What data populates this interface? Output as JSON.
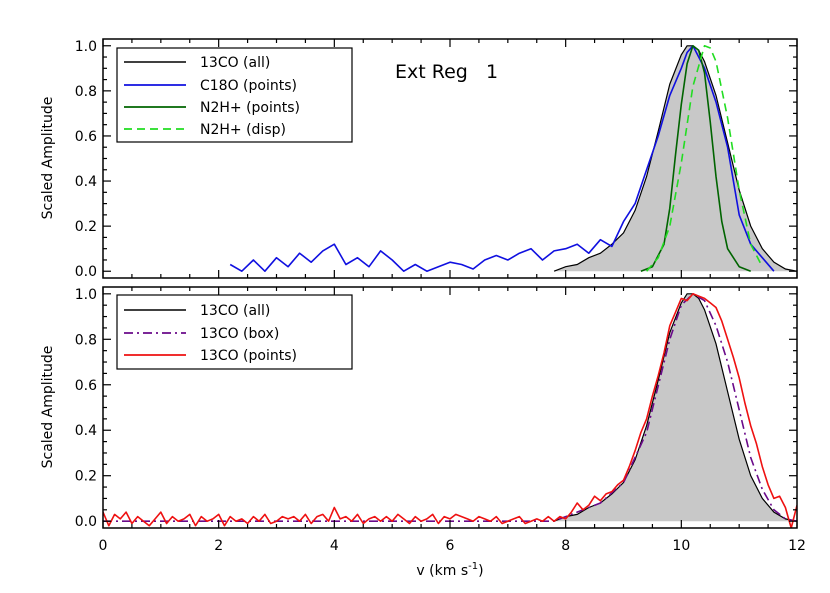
{
  "colors": {
    "13CO_all": "#000000",
    "fill": "#c8c8c8",
    "C18O_points": "#1010e0",
    "N2H_points": "#006400",
    "N2H_disp": "#22dd22",
    "13CO_box": "#6a0a8a",
    "13CO_points": "#ee1111"
  },
  "chart_data": [
    {
      "type": "line",
      "title": "Ext Reg   1",
      "xlabel": "",
      "ylabel": "Scaled Amplitude",
      "xlim": [
        0,
        12
      ],
      "ylim": [
        -0.03,
        1.03
      ],
      "yticks": [
        "0.0",
        "0.2",
        "0.4",
        "0.6",
        "0.8",
        "1.0"
      ],
      "legend_position": "top-left",
      "legend": [
        "13CO (all)",
        "C18O (points)",
        "N2H+ (points)",
        "N2H+ (disp)"
      ],
      "series": [
        {
          "name": "13CO (all)",
          "style": "filled",
          "x": [
            7.8,
            8.0,
            8.2,
            8.4,
            8.6,
            8.8,
            9.0,
            9.2,
            9.4,
            9.6,
            9.8,
            10.0,
            10.1,
            10.2,
            10.3,
            10.4,
            10.6,
            10.8,
            11.0,
            11.2,
            11.4,
            11.6,
            11.8,
            12.0
          ],
          "y": [
            0.0,
            0.02,
            0.03,
            0.06,
            0.08,
            0.12,
            0.17,
            0.27,
            0.42,
            0.62,
            0.83,
            0.96,
            1.0,
            1.0,
            0.98,
            0.93,
            0.78,
            0.57,
            0.36,
            0.2,
            0.1,
            0.04,
            0.01,
            0.0
          ]
        },
        {
          "name": "C18O (points)",
          "style": "solid",
          "x": [
            2.2,
            2.4,
            2.6,
            2.8,
            3.0,
            3.2,
            3.4,
            3.6,
            3.8,
            4.0,
            4.2,
            4.4,
            4.6,
            4.8,
            5.0,
            5.2,
            5.4,
            5.6,
            5.8,
            6.0,
            6.2,
            6.4,
            6.6,
            6.8,
            7.0,
            7.2,
            7.4,
            7.6,
            7.8,
            8.0,
            8.2,
            8.4,
            8.6,
            8.8,
            9.0,
            9.2,
            9.4,
            9.6,
            9.8,
            10.0,
            10.1,
            10.2,
            10.3,
            10.4,
            10.6,
            10.8,
            11.0,
            11.2,
            11.4,
            11.6
          ],
          "y": [
            0.03,
            0.0,
            0.05,
            0.0,
            0.06,
            0.02,
            0.08,
            0.04,
            0.09,
            0.12,
            0.03,
            0.06,
            0.02,
            0.09,
            0.05,
            0.0,
            0.03,
            0.0,
            0.02,
            0.04,
            0.03,
            0.01,
            0.05,
            0.07,
            0.05,
            0.08,
            0.1,
            0.05,
            0.09,
            0.1,
            0.12,
            0.08,
            0.14,
            0.11,
            0.22,
            0.3,
            0.45,
            0.6,
            0.78,
            0.9,
            0.97,
            1.0,
            0.95,
            0.9,
            0.75,
            0.55,
            0.25,
            0.12,
            0.06,
            0.0
          ]
        },
        {
          "name": "N2H+ (points)",
          "style": "solid",
          "x": [
            9.3,
            9.5,
            9.7,
            9.8,
            9.9,
            10.0,
            10.1,
            10.2,
            10.3,
            10.4,
            10.5,
            10.6,
            10.7,
            10.8,
            11.0,
            11.2
          ],
          "y": [
            0.0,
            0.02,
            0.12,
            0.28,
            0.52,
            0.74,
            0.92,
            1.0,
            0.98,
            0.88,
            0.66,
            0.42,
            0.22,
            0.1,
            0.02,
            0.0
          ]
        },
        {
          "name": "N2H+ (disp)",
          "style": "dashed",
          "x": [
            9.4,
            9.6,
            9.8,
            10.0,
            10.2,
            10.4,
            10.5,
            10.6,
            10.8,
            11.0,
            11.2,
            11.4
          ],
          "y": [
            0.0,
            0.06,
            0.2,
            0.48,
            0.82,
            1.0,
            0.99,
            0.93,
            0.68,
            0.36,
            0.12,
            0.02
          ]
        }
      ]
    },
    {
      "type": "line",
      "title": "",
      "xlabel": "v (km s⁻¹)",
      "ylabel": "Scaled Amplitude",
      "xlim": [
        0,
        12
      ],
      "ylim": [
        -0.03,
        1.03
      ],
      "xticks": [
        "0",
        "2",
        "4",
        "6",
        "8",
        "10",
        "12"
      ],
      "yticks": [
        "0.0",
        "0.2",
        "0.4",
        "0.6",
        "0.8",
        "1.0"
      ],
      "legend_position": "top-left",
      "legend": [
        "13CO (all)",
        "13CO (box)",
        "13CO (points)"
      ],
      "series": [
        {
          "name": "13CO (all)",
          "style": "filled",
          "x": [
            7.8,
            8.0,
            8.2,
            8.4,
            8.6,
            8.8,
            9.0,
            9.2,
            9.4,
            9.6,
            9.8,
            10.0,
            10.1,
            10.2,
            10.3,
            10.4,
            10.6,
            10.8,
            11.0,
            11.2,
            11.4,
            11.6,
            11.8,
            12.0
          ],
          "y": [
            0.0,
            0.02,
            0.03,
            0.06,
            0.08,
            0.12,
            0.17,
            0.27,
            0.42,
            0.62,
            0.83,
            0.96,
            1.0,
            1.0,
            0.98,
            0.93,
            0.78,
            0.57,
            0.36,
            0.2,
            0.1,
            0.04,
            0.01,
            0.0
          ]
        },
        {
          "name": "13CO (box)",
          "style": "dashdot",
          "x": [
            0,
            1,
            2,
            3,
            4,
            5,
            6,
            7,
            7.8,
            8.2,
            8.6,
            9.0,
            9.4,
            9.8,
            10.0,
            10.2,
            10.4,
            10.6,
            10.8,
            11.0,
            11.2,
            11.4,
            11.6,
            11.8,
            12.0
          ],
          "y": [
            0.0,
            0.0,
            0.0,
            0.0,
            0.0,
            0.0,
            0.0,
            0.0,
            0.0,
            0.04,
            0.08,
            0.17,
            0.39,
            0.8,
            0.95,
            1.0,
            0.97,
            0.86,
            0.7,
            0.49,
            0.28,
            0.14,
            0.05,
            0.01,
            0.0
          ]
        },
        {
          "name": "13CO (points)",
          "style": "solid",
          "x": [
            0.0,
            0.1,
            0.2,
            0.3,
            0.4,
            0.5,
            0.6,
            0.7,
            0.8,
            0.9,
            1.0,
            1.1,
            1.2,
            1.3,
            1.4,
            1.5,
            1.6,
            1.7,
            1.8,
            1.9,
            2.0,
            2.1,
            2.2,
            2.3,
            2.4,
            2.5,
            2.6,
            2.7,
            2.8,
            2.9,
            3.0,
            3.1,
            3.2,
            3.3,
            3.4,
            3.5,
            3.6,
            3.7,
            3.8,
            3.9,
            4.0,
            4.1,
            4.2,
            4.3,
            4.4,
            4.5,
            4.6,
            4.7,
            4.8,
            4.9,
            5.0,
            5.1,
            5.2,
            5.3,
            5.4,
            5.5,
            5.6,
            5.7,
            5.8,
            5.9,
            6.0,
            6.1,
            6.2,
            6.3,
            6.4,
            6.5,
            6.6,
            6.7,
            6.8,
            6.9,
            7.0,
            7.1,
            7.2,
            7.3,
            7.4,
            7.5,
            7.6,
            7.7,
            7.8,
            7.9,
            8.0,
            8.1,
            8.2,
            8.3,
            8.4,
            8.5,
            8.6,
            8.7,
            8.8,
            8.9,
            9.0,
            9.1,
            9.2,
            9.3,
            9.4,
            9.5,
            9.6,
            9.7,
            9.8,
            9.9,
            10.0,
            10.1,
            10.2,
            10.3,
            10.4,
            10.5,
            10.6,
            10.7,
            10.8,
            10.9,
            11.0,
            11.1,
            11.2,
            11.3,
            11.4,
            11.5,
            11.6,
            11.7,
            11.8,
            11.9,
            12.0
          ],
          "y": [
            0.04,
            -0.02,
            0.03,
            0.01,
            0.04,
            -0.01,
            0.02,
            0.0,
            -0.02,
            0.01,
            0.04,
            -0.01,
            0.02,
            0.0,
            0.01,
            0.03,
            -0.02,
            0.02,
            0.0,
            0.01,
            0.03,
            -0.02,
            0.02,
            0.0,
            0.01,
            -0.01,
            0.02,
            0.0,
            0.03,
            -0.01,
            0.0,
            0.02,
            0.01,
            0.02,
            0.0,
            0.03,
            -0.01,
            0.02,
            0.03,
            0.0,
            0.06,
            0.01,
            0.02,
            0.0,
            0.03,
            -0.01,
            0.01,
            0.02,
            0.0,
            0.02,
            0.0,
            0.03,
            0.01,
            -0.01,
            0.02,
            0.0,
            0.01,
            0.03,
            -0.01,
            0.02,
            0.01,
            0.03,
            0.02,
            0.01,
            0.0,
            0.02,
            0.01,
            0.0,
            0.02,
            -0.01,
            0.0,
            0.01,
            0.02,
            -0.01,
            0.0,
            0.01,
            0.0,
            0.02,
            0.0,
            0.02,
            0.01,
            0.04,
            0.08,
            0.05,
            0.07,
            0.11,
            0.09,
            0.12,
            0.13,
            0.16,
            0.18,
            0.24,
            0.31,
            0.39,
            0.45,
            0.55,
            0.64,
            0.74,
            0.86,
            0.92,
            0.98,
            0.97,
            1.0,
            0.99,
            0.98,
            0.96,
            0.94,
            0.88,
            0.8,
            0.72,
            0.63,
            0.52,
            0.42,
            0.34,
            0.24,
            0.16,
            0.1,
            0.11,
            0.06,
            -0.03,
            0.07
          ]
        }
      ]
    }
  ]
}
